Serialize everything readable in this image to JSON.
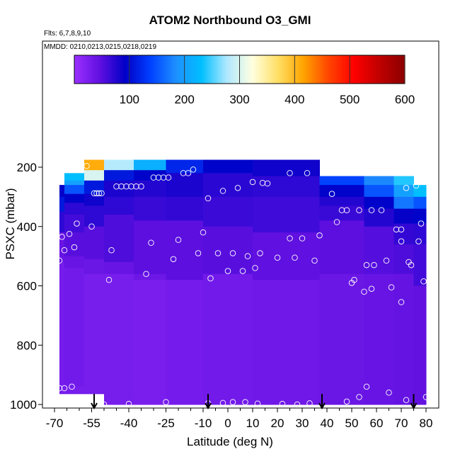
{
  "chart_data": {
    "type": "heatmap",
    "title": "ATOM2 Northbound O3_GMI",
    "flights_label": "Flts: 6,7,8,9,10",
    "dates_label": "MMDD: 0210,0213,0215,0218,0219",
    "xlabel": "Latitude (deg N)",
    "ylabel": "PSXC (mbar)",
    "xlim": [
      -70,
      80
    ],
    "ylim": [
      1000,
      60
    ],
    "x_ticks": [
      -70,
      -55,
      -40,
      -25,
      -10,
      0,
      10,
      20,
      30,
      40,
      50,
      60,
      70,
      80
    ],
    "x_minor_ticks": [
      -65,
      -60,
      -50,
      -45,
      -35,
      -30,
      -20,
      -15,
      -5,
      5,
      15,
      25,
      35,
      45,
      55,
      65,
      75
    ],
    "y_ticks": [
      200,
      400,
      600,
      800,
      1000
    ],
    "colorbar": {
      "min": 0,
      "max": 600,
      "ticks": [
        100,
        200,
        300,
        400,
        500,
        600
      ],
      "colors": [
        "#9b30ff",
        "#6010e0",
        "#0000c8",
        "#0040ff",
        "#1e90ff",
        "#00bfff",
        "#b0e8ff",
        "#ffffe0",
        "#ffe066",
        "#ffa500",
        "#ff4500",
        "#ff0000",
        "#c00000",
        "#8b0000"
      ]
    },
    "profile_arrows_lat": [
      -54,
      -8,
      38,
      75
    ],
    "columns": [
      {
        "x": [
          -68,
          -66
        ],
        "top": 260,
        "bins": [
          [
            260,
            55
          ],
          [
            300,
            90
          ],
          [
            350,
            110
          ],
          [
            420,
            70
          ],
          [
            520,
            40
          ],
          [
            1000,
            30
          ]
        ]
      },
      {
        "x": [
          -66,
          -58
        ],
        "top": 220,
        "bins": [
          [
            245,
            230
          ],
          [
            260,
            200
          ],
          [
            290,
            150
          ],
          [
            320,
            95
          ],
          [
            360,
            70
          ],
          [
            420,
            60
          ],
          [
            500,
            50
          ],
          [
            540,
            40
          ],
          [
            940,
            32
          ],
          [
            1000,
            28
          ]
        ]
      },
      {
        "x": [
          -58,
          -50
        ],
        "top": 175,
        "bins": [
          [
            210,
            410
          ],
          [
            245,
            300
          ],
          [
            290,
            110
          ],
          [
            330,
            85
          ],
          [
            400,
            70
          ],
          [
            510,
            50
          ],
          [
            560,
            38
          ],
          [
            1000,
            28
          ]
        ]
      },
      {
        "x": [
          -50,
          -38
        ],
        "top": 175,
        "bins": [
          [
            210,
            280
          ],
          [
            245,
            110
          ],
          [
            300,
            80
          ],
          [
            360,
            70
          ],
          [
            520,
            55
          ],
          [
            560,
            40
          ],
          [
            1000,
            28
          ]
        ]
      },
      {
        "x": [
          -38,
          -25
        ],
        "top": 175,
        "bins": [
          [
            210,
            215
          ],
          [
            245,
            95
          ],
          [
            300,
            75
          ],
          [
            380,
            65
          ],
          [
            560,
            48
          ],
          [
            580,
            36
          ],
          [
            1000,
            26
          ]
        ]
      },
      {
        "x": [
          -25,
          -10
        ],
        "top": 175,
        "bins": [
          [
            220,
            120
          ],
          [
            300,
            80
          ],
          [
            380,
            68
          ],
          [
            580,
            48
          ],
          [
            1000,
            30
          ]
        ]
      },
      {
        "x": [
          -10,
          10
        ],
        "top": 175,
        "bins": [
          [
            220,
            95
          ],
          [
            300,
            72
          ],
          [
            400,
            64
          ],
          [
            560,
            50
          ],
          [
            1000,
            32
          ]
        ]
      },
      {
        "x": [
          10,
          37
        ],
        "top": 175,
        "bins": [
          [
            230,
            85
          ],
          [
            300,
            70
          ],
          [
            420,
            62
          ],
          [
            580,
            46
          ],
          [
            1000,
            34
          ]
        ]
      },
      {
        "x": [
          37,
          55
        ],
        "top": 230,
        "bins": [
          [
            260,
            140
          ],
          [
            300,
            95
          ],
          [
            330,
            75
          ],
          [
            380,
            65
          ],
          [
            560,
            48
          ],
          [
            1000,
            38
          ]
        ]
      },
      {
        "x": [
          55,
          67
        ],
        "top": 230,
        "bins": [
          [
            260,
            180
          ],
          [
            300,
            150
          ],
          [
            340,
            95
          ],
          [
            400,
            75
          ],
          [
            560,
            52
          ],
          [
            1000,
            40
          ]
        ]
      },
      {
        "x": [
          67,
          75
        ],
        "top": 230,
        "bins": [
          [
            260,
            240
          ],
          [
            300,
            200
          ],
          [
            340,
            170
          ],
          [
            390,
            90
          ],
          [
            460,
            68
          ],
          [
            560,
            55
          ],
          [
            1000,
            42
          ]
        ]
      },
      {
        "x": [
          75,
          80
        ],
        "top": 260,
        "bins": [
          [
            300,
            230
          ],
          [
            340,
            150
          ],
          [
            390,
            95
          ],
          [
            460,
            70
          ],
          [
            600,
            60
          ],
          [
            1000,
            44
          ]
        ]
      }
    ],
    "observations": [
      [
        -60,
        200
      ],
      [
        -57,
        196
      ],
      [
        -67,
        435
      ],
      [
        -66,
        480
      ],
      [
        -64,
        425
      ],
      [
        -62,
        470
      ],
      [
        -61,
        390
      ],
      [
        -68,
        515
      ],
      [
        -55,
        400
      ],
      [
        -54,
        288
      ],
      [
        -53,
        288
      ],
      [
        -52,
        288
      ],
      [
        -51,
        288
      ],
      [
        -48,
        580
      ],
      [
        -47,
        480
      ],
      [
        -45,
        265
      ],
      [
        -43,
        265
      ],
      [
        -41,
        265
      ],
      [
        -39,
        265
      ],
      [
        -37,
        265
      ],
      [
        -35,
        265
      ],
      [
        -33,
        560
      ],
      [
        -31,
        455
      ],
      [
        -30,
        235
      ],
      [
        -28,
        235
      ],
      [
        -26,
        235
      ],
      [
        -24,
        235
      ],
      [
        -22,
        510
      ],
      [
        -20,
        445
      ],
      [
        -18,
        220
      ],
      [
        -16,
        220
      ],
      [
        -14,
        208
      ],
      [
        -12,
        490
      ],
      [
        -10,
        420
      ],
      [
        -8,
        305
      ],
      [
        -7,
        575
      ],
      [
        -4,
        490
      ],
      [
        -2,
        280
      ],
      [
        0,
        550
      ],
      [
        2,
        490
      ],
      [
        4,
        270
      ],
      [
        6,
        550
      ],
      [
        8,
        500
      ],
      [
        10,
        250
      ],
      [
        11,
        540
      ],
      [
        13,
        490
      ],
      [
        14,
        253
      ],
      [
        16,
        255
      ],
      [
        20,
        505
      ],
      [
        25,
        220
      ],
      [
        25,
        440
      ],
      [
        27,
        505
      ],
      [
        30,
        440
      ],
      [
        32,
        220
      ],
      [
        35,
        515
      ],
      [
        37,
        430
      ],
      [
        40,
        210
      ],
      [
        42,
        290
      ],
      [
        44,
        385
      ],
      [
        46,
        345
      ],
      [
        48,
        345
      ],
      [
        50,
        590
      ],
      [
        51,
        580
      ],
      [
        53,
        345
      ],
      [
        55,
        620
      ],
      [
        56,
        530
      ],
      [
        58,
        345
      ],
      [
        58,
        610
      ],
      [
        59,
        530
      ],
      [
        62,
        345
      ],
      [
        64,
        515
      ],
      [
        66,
        605
      ],
      [
        68,
        410
      ],
      [
        70,
        410
      ],
      [
        70,
        655
      ],
      [
        70,
        450
      ],
      [
        72,
        270
      ],
      [
        73,
        520
      ],
      [
        74,
        530
      ],
      [
        76,
        262
      ],
      [
        77,
        450
      ],
      [
        78,
        390
      ],
      [
        79,
        585
      ],
      [
        -68,
        945
      ],
      [
        -66,
        945
      ],
      [
        -63,
        940
      ],
      [
        -50,
        1000
      ],
      [
        -40,
        998
      ],
      [
        -25,
        992
      ],
      [
        -8,
        996
      ],
      [
        -2,
        995
      ],
      [
        2,
        992
      ],
      [
        7,
        992
      ],
      [
        12,
        997
      ],
      [
        22,
        998
      ],
      [
        28,
        1000
      ],
      [
        33,
        996
      ],
      [
        48,
        990
      ],
      [
        53,
        975
      ],
      [
        56,
        940
      ],
      [
        65,
        960
      ],
      [
        72,
        985
      ],
      [
        80,
        975
      ]
    ]
  }
}
